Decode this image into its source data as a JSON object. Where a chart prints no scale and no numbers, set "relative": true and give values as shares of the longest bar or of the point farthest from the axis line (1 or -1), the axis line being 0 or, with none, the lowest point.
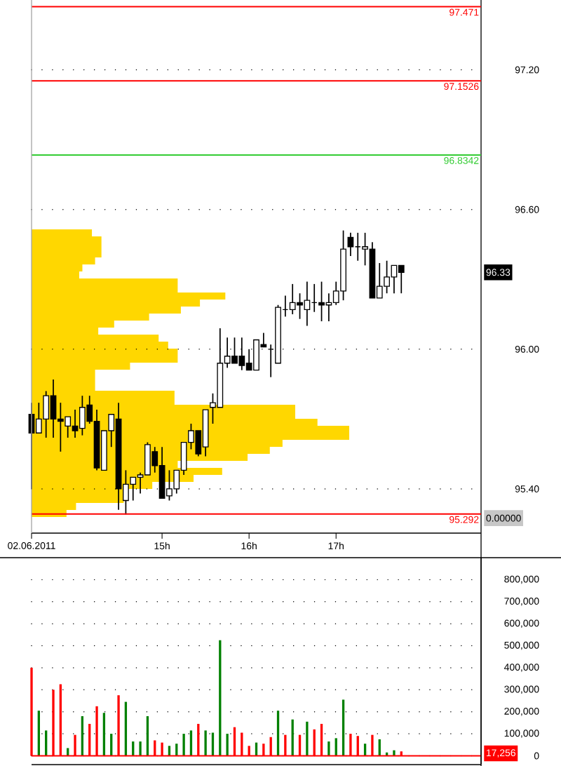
{
  "chart_data": [
    {
      "type": "candlestick",
      "x": [
        "2011-06-02T13:30",
        "2011-06-02T13:35",
        "2011-06-02T13:40",
        "2011-06-02T13:45",
        "2011-06-02T13:50",
        "2011-06-02T13:55",
        "2011-06-02T14:00",
        "2011-06-02T14:05",
        "2011-06-02T14:10",
        "2011-06-02T14:15",
        "2011-06-02T14:20",
        "2011-06-02T14:25",
        "2011-06-02T14:30",
        "2011-06-02T14:35",
        "2011-06-02T14:40",
        "2011-06-02T14:45",
        "2011-06-02T14:50",
        "2011-06-02T14:55",
        "2011-06-02T15:00",
        "2011-06-02T15:05",
        "2011-06-02T15:10",
        "2011-06-02T15:15",
        "2011-06-02T15:20",
        "2011-06-02T15:25",
        "2011-06-02T15:30",
        "2011-06-02T15:35",
        "2011-06-02T15:40",
        "2011-06-02T15:45",
        "2011-06-02T15:50",
        "2011-06-02T15:55",
        "2011-06-02T16:00",
        "2011-06-02T16:05",
        "2011-06-02T16:10",
        "2011-06-02T16:15",
        "2011-06-02T16:20",
        "2011-06-02T16:25",
        "2011-06-02T16:30",
        "2011-06-02T16:35",
        "2011-06-02T16:40",
        "2011-06-02T16:45",
        "2011-06-02T16:50",
        "2011-06-02T16:55",
        "2011-06-02T17:00",
        "2011-06-02T17:05",
        "2011-06-02T17:10",
        "2011-06-02T17:15",
        "2011-06-02T17:20",
        "2011-06-02T17:25",
        "2011-06-02T17:30",
        "2011-06-02T17:35",
        "2011-06-02T17:40",
        "2011-06-02T17:45"
      ],
      "ohlc": [
        [
          95.72,
          95.77,
          95.4,
          95.64
        ],
        [
          95.64,
          95.77,
          95.64,
          95.7
        ],
        [
          95.7,
          95.82,
          95.62,
          95.8
        ],
        [
          95.8,
          95.87,
          95.62,
          95.7
        ],
        [
          95.7,
          95.77,
          95.56,
          95.69
        ],
        [
          95.67,
          95.71,
          95.62,
          95.71
        ],
        [
          95.67,
          95.74,
          95.62,
          95.65
        ],
        [
          95.66,
          95.8,
          95.63,
          95.75
        ],
        [
          95.76,
          95.8,
          95.68,
          95.69
        ],
        [
          95.69,
          95.74,
          95.48,
          95.49
        ],
        [
          95.48,
          95.65,
          95.48,
          95.65
        ],
        [
          95.65,
          95.72,
          95.58,
          95.72
        ],
        [
          95.7,
          95.77,
          95.31,
          95.4
        ],
        [
          95.35,
          95.48,
          95.29,
          95.42
        ],
        [
          95.42,
          95.45,
          95.35,
          95.45
        ],
        [
          95.45,
          95.47,
          95.38,
          95.46
        ],
        [
          95.46,
          95.6,
          95.46,
          95.59
        ],
        [
          95.56,
          95.58,
          95.47,
          95.5
        ],
        [
          95.5,
          95.58,
          95.36,
          95.36
        ],
        [
          95.37,
          95.48,
          95.35,
          95.4
        ],
        [
          95.4,
          95.48,
          95.38,
          95.48
        ],
        [
          95.48,
          95.6,
          95.46,
          95.6
        ],
        [
          95.6,
          95.68,
          95.57,
          95.65
        ],
        [
          95.65,
          95.65,
          95.54,
          95.55
        ],
        [
          95.58,
          95.74,
          95.54,
          95.74
        ],
        [
          95.75,
          95.81,
          95.68,
          95.77
        ],
        [
          95.75,
          96.09,
          95.75,
          95.94
        ],
        [
          95.94,
          96.05,
          95.92,
          95.97
        ],
        [
          95.97,
          96.05,
          95.94,
          95.94
        ],
        [
          95.97,
          96.05,
          95.91,
          95.93
        ],
        [
          95.94,
          96.0,
          95.91,
          95.91
        ],
        [
          95.91,
          96.04,
          95.91,
          96.04
        ],
        [
          96.02,
          96.07,
          96.01,
          96.01
        ],
        [
          96.0,
          96.02,
          95.88,
          96.0
        ],
        [
          95.94,
          96.19,
          95.94,
          96.18
        ],
        [
          96.17,
          96.23,
          96.14,
          96.17
        ],
        [
          96.17,
          96.28,
          96.15,
          96.2
        ],
        [
          96.2,
          96.24,
          96.13,
          96.19
        ],
        [
          96.17,
          96.29,
          96.1,
          96.21
        ],
        [
          96.2,
          96.28,
          96.16,
          96.2
        ],
        [
          96.2,
          96.29,
          96.12,
          96.19
        ],
        [
          96.19,
          96.24,
          96.12,
          96.2
        ],
        [
          96.2,
          96.29,
          96.19,
          96.25
        ],
        [
          96.25,
          96.51,
          96.21,
          96.43
        ],
        [
          96.48,
          96.5,
          96.4,
          96.44
        ],
        [
          96.44,
          96.5,
          96.38,
          96.44
        ],
        [
          96.43,
          96.5,
          96.36,
          96.44
        ],
        [
          96.43,
          96.46,
          96.22,
          96.22
        ],
        [
          96.22,
          96.37,
          96.22,
          96.27
        ],
        [
          96.27,
          96.38,
          96.24,
          96.31
        ],
        [
          96.31,
          96.36,
          96.24,
          96.36
        ],
        [
          96.36,
          96.36,
          96.24,
          96.33
        ]
      ],
      "xlim": [
        "2011-06-02T13:30",
        "2011-06-02T18:40"
      ],
      "ylim": [
        95.21,
        97.5
      ],
      "xticks": [
        {
          "value": "2011-06-02T13:30",
          "label": "02.06.2011"
        },
        {
          "value": "2011-06-02T15:00",
          "label": "15h"
        },
        {
          "value": "2011-06-02T16:00",
          "label": "16h"
        },
        {
          "value": "2011-06-02T17:00",
          "label": "17h"
        }
      ],
      "yticks": [
        {
          "value": 95.4,
          "label": "95.40"
        },
        {
          "value": 96.0,
          "label": "96.00"
        },
        {
          "value": 96.6,
          "label": "96.60"
        },
        {
          "value": 97.2,
          "label": "97.20"
        }
      ],
      "grid": "y",
      "ref_lines": [
        {
          "axis": "y",
          "value": 97.471,
          "label": "97.471",
          "color": "#ff0000"
        },
        {
          "axis": "y",
          "value": 97.1526,
          "label": "97.1526",
          "color": "#ff0000"
        },
        {
          "axis": "y",
          "value": 96.8342,
          "label": "96.8342",
          "color": "#33cc33"
        },
        {
          "axis": "y",
          "value": 95.292,
          "label": "95.292",
          "color": "#ff0000"
        }
      ],
      "annotations": [
        "96.33",
        "0.00000"
      ]
    },
    {
      "type": "bar",
      "orientation": "horizontal",
      "relative": true,
      "color": "#ffd700",
      "categories": [
        null,
        null,
        null,
        null,
        null,
        null,
        null,
        null,
        null,
        null,
        null,
        null,
        null,
        null,
        null,
        null,
        null,
        null,
        null,
        null,
        null,
        null,
        null,
        null,
        null,
        null,
        null,
        null,
        null,
        null,
        null,
        null,
        null,
        null,
        null,
        null,
        null,
        null,
        null,
        null,
        null
      ],
      "values": [
        0.19,
        0.22,
        0.22,
        0.22,
        0.2,
        0.16,
        0.15,
        0.46,
        0.46,
        0.61,
        0.53,
        0.47,
        0.37,
        0.26,
        0.21,
        0.4,
        0.43,
        0.46,
        0.46,
        0.31,
        0.2,
        0.2,
        0.2,
        0.45,
        0.45,
        0.83,
        0.83,
        0.9,
        1.0,
        1.0,
        0.79,
        0.75,
        0.68,
        0.46,
        0.6,
        0.51,
        0.38,
        0.29,
        0.29,
        0.14,
        0.11
      ]
    },
    {
      "type": "bar",
      "x": [
        "2011-06-02T13:30",
        "2011-06-02T13:35",
        "2011-06-02T13:40",
        "2011-06-02T13:45",
        "2011-06-02T13:50",
        "2011-06-02T13:55",
        "2011-06-02T14:00",
        "2011-06-02T14:05",
        "2011-06-02T14:10",
        "2011-06-02T14:15",
        "2011-06-02T14:20",
        "2011-06-02T14:25",
        "2011-06-02T14:30",
        "2011-06-02T14:35",
        "2011-06-02T14:40",
        "2011-06-02T14:45",
        "2011-06-02T14:50",
        "2011-06-02T14:55",
        "2011-06-02T15:00",
        "2011-06-02T15:05",
        "2011-06-02T15:10",
        "2011-06-02T15:15",
        "2011-06-02T15:20",
        "2011-06-02T15:25",
        "2011-06-02T15:30",
        "2011-06-02T15:35",
        "2011-06-02T15:40",
        "2011-06-02T15:45",
        "2011-06-02T15:50",
        "2011-06-02T15:55",
        "2011-06-02T16:00",
        "2011-06-02T16:05",
        "2011-06-02T16:10",
        "2011-06-02T16:15",
        "2011-06-02T16:20",
        "2011-06-02T16:25",
        "2011-06-02T16:30",
        "2011-06-02T16:35",
        "2011-06-02T16:40",
        "2011-06-02T16:45",
        "2011-06-02T16:50",
        "2011-06-02T16:55",
        "2011-06-02T17:00",
        "2011-06-02T17:05",
        "2011-06-02T17:10",
        "2011-06-02T17:15",
        "2011-06-02T17:20",
        "2011-06-02T17:25",
        "2011-06-02T17:30",
        "2011-06-02T17:35",
        "2011-06-02T17:40",
        "2011-06-02T17:45"
      ],
      "values": [
        400000,
        205000,
        115000,
        300000,
        325000,
        35000,
        95000,
        180000,
        145000,
        225000,
        195000,
        100000,
        275000,
        245000,
        65000,
        65000,
        180000,
        70000,
        60000,
        45000,
        55000,
        100000,
        115000,
        145000,
        115000,
        105000,
        525000,
        100000,
        130000,
        105000,
        45000,
        60000,
        55000,
        85000,
        205000,
        95000,
        165000,
        95000,
        155000,
        120000,
        145000,
        65000,
        80000,
        255000,
        100000,
        90000,
        55000,
        95000,
        75000,
        15000,
        25000,
        20000
      ],
      "colors": [
        "#ff0000",
        "#008000",
        "#008000",
        "#ff0000",
        "#ff0000",
        "#008000",
        "#ff0000",
        "#008000",
        "#ff0000",
        "#ff0000",
        "#008000",
        "#008000",
        "#ff0000",
        "#008000",
        "#008000",
        "#008000",
        "#008000",
        "#ff0000",
        "#ff0000",
        "#008000",
        "#008000",
        "#008000",
        "#008000",
        "#ff0000",
        "#008000",
        "#008000",
        "#008000",
        "#008000",
        "#ff0000",
        "#ff0000",
        "#ff0000",
        "#008000",
        "#ff0000",
        "#ff0000",
        "#008000",
        "#ff0000",
        "#008000",
        "#ff0000",
        "#008000",
        "#ff0000",
        "#ff0000",
        "#008000",
        "#008000",
        "#008000",
        "#ff0000",
        "#ff0000",
        "#008000",
        "#ff0000",
        "#008000",
        "#008000",
        "#008000",
        "#ff0000"
      ],
      "xlim": [
        "2011-06-02T13:30",
        "2011-06-02T18:40"
      ],
      "ylim": [
        -40000,
        900000
      ],
      "yticks": [
        0,
        {
          "value": 100000,
          "label": "100,000"
        },
        {
          "value": 200000,
          "label": "200,000"
        },
        {
          "value": 300000,
          "label": "300,000"
        },
        {
          "value": 400000,
          "label": "400,000"
        },
        {
          "value": 500000,
          "label": "500,000"
        },
        {
          "value": 600000,
          "label": "600,000"
        },
        {
          "value": 700000,
          "label": "700,000"
        },
        {
          "value": 800000,
          "label": "800,000"
        }
      ],
      "grid": "y",
      "ref_lines": [
        {
          "axis": "y",
          "value": 0,
          "color": "#ff0000"
        }
      ],
      "annotations": [
        "17,256"
      ]
    }
  ]
}
